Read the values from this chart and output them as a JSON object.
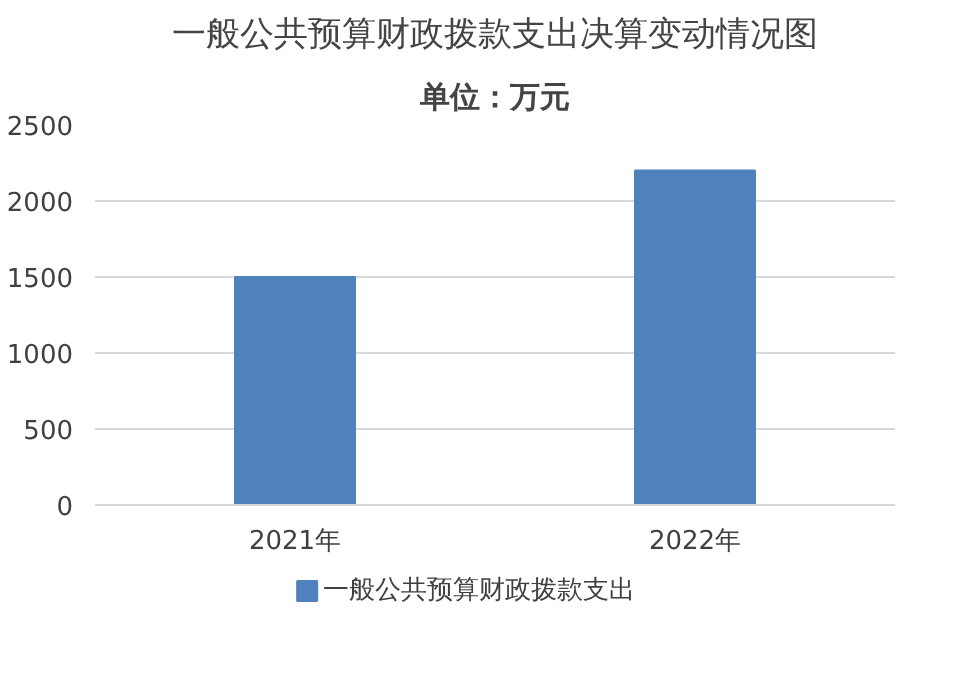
{
  "chart_data": {
    "type": "bar",
    "title": "一般公共预算财政拨款支出决算变动情况图",
    "subtitle": "单位：万元",
    "categories": [
      "2021年",
      "2022年"
    ],
    "series": [
      {
        "name": "一般公共预算财政拨款支出",
        "color": "#4f81bd",
        "values": [
          1500,
          2200
        ]
      }
    ],
    "ylim": [
      0,
      2500
    ],
    "yticks": [
      0,
      500,
      1000,
      1500,
      2000,
      2500
    ],
    "grid": "y",
    "legend": "bottom"
  }
}
